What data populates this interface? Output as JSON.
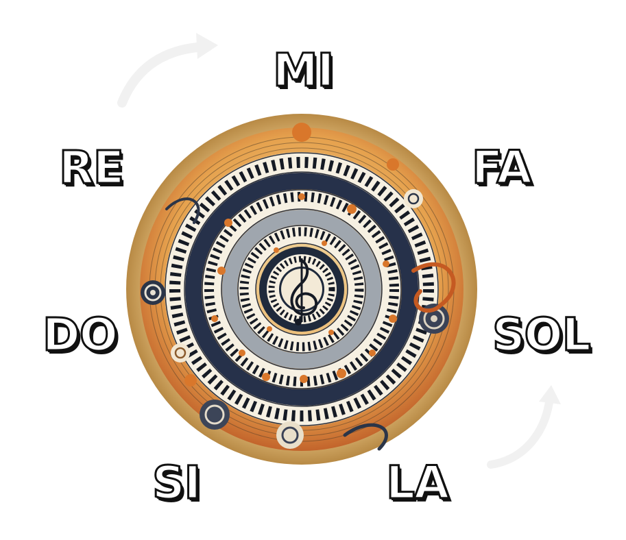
{
  "labels": {
    "mi": "MI",
    "re": "RE",
    "fa": "FA",
    "do": "DO",
    "sol": "SOL",
    "si": "SI",
    "la": "LA"
  },
  "colors": {
    "gold_rim": "#c79a54",
    "navy": "#1f2a3c",
    "orange": "#d9772b",
    "cream": "#f3e6c8",
    "rust": "#b0461e",
    "label_fill": "#ffffff",
    "label_outline": "#111111"
  },
  "icons": {
    "center": "treble-clef-icon",
    "direction": "circular-arrow-icon"
  }
}
